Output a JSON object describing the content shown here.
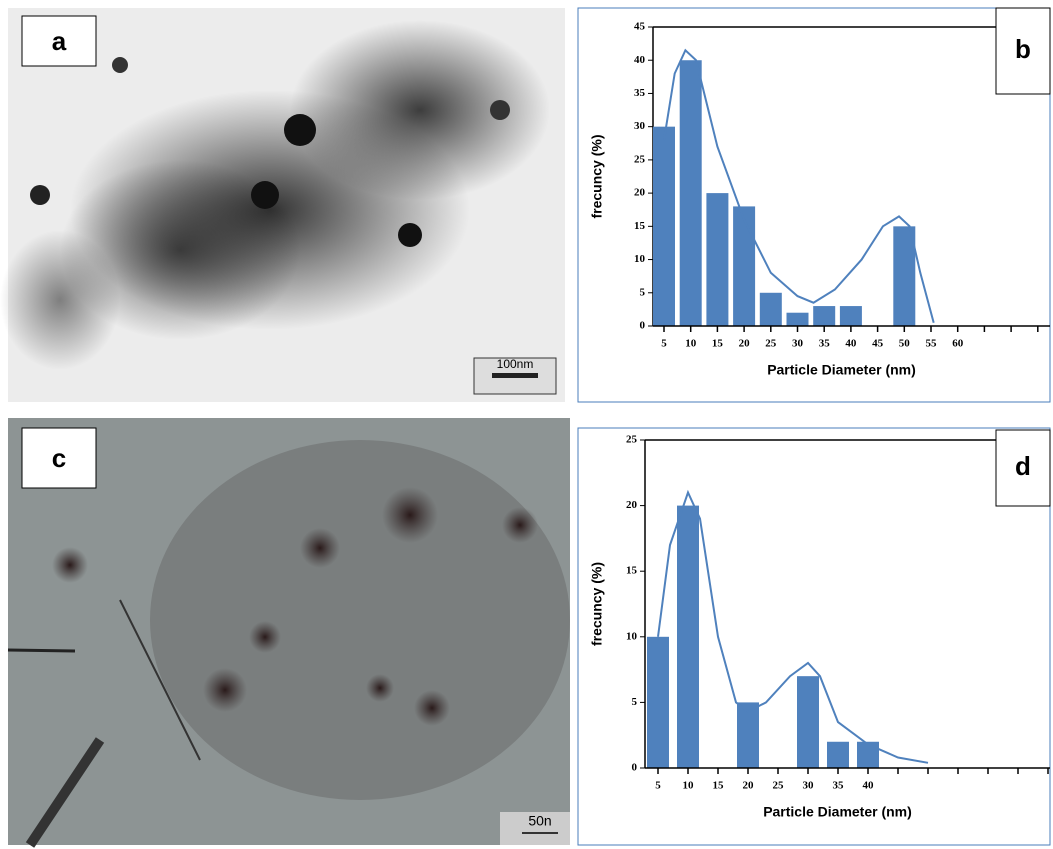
{
  "images": [
    {
      "label": "a",
      "scale_bar": "100nm"
    },
    {
      "label": "c",
      "scale_bar": "50n"
    }
  ],
  "chart_data": [
    {
      "type": "bar",
      "panel_label": "b",
      "x_label": "Particle Diameter (nm)",
      "y_label": "frecuncy (%)",
      "categories": [
        "5",
        "10",
        "15",
        "20",
        "25",
        "30",
        "35",
        "40",
        "45",
        "50",
        "55",
        "60",
        null,
        null,
        null
      ],
      "values": [
        30,
        40,
        20,
        18,
        5,
        2,
        3,
        3,
        null,
        15,
        null,
        null,
        null,
        null,
        null
      ],
      "color": "#4f81bd",
      "ylim": [
        0,
        45
      ],
      "yticks": [
        0,
        5,
        10,
        15,
        20,
        25,
        30,
        35,
        40,
        45
      ],
      "fit": {
        "color": "#4f81bd",
        "x": [
          5,
          7,
          9,
          11,
          15,
          20,
          25,
          30,
          33,
          37,
          42,
          46,
          49,
          51,
          53,
          55.5
        ],
        "y": [
          28,
          38,
          41.5,
          40,
          27,
          16,
          8,
          4.5,
          3.5,
          5.5,
          10,
          15,
          16.5,
          15,
          8,
          0.5
        ]
      }
    },
    {
      "type": "bar",
      "panel_label": "d",
      "x_label": "Particle Diameter (nm)",
      "y_label": "frecuncy (%)",
      "categories": [
        "5",
        "10",
        "15",
        "20",
        "25",
        "30",
        "35",
        "40",
        null,
        null,
        null,
        null,
        null,
        null
      ],
      "values": [
        10,
        20,
        null,
        5,
        null,
        7,
        2,
        2,
        null,
        null,
        null,
        null,
        null,
        null
      ],
      "color": "#4f81bd",
      "ylim": [
        0,
        25
      ],
      "yticks": [
        0,
        5,
        10,
        15,
        20,
        25
      ],
      "fit": {
        "color": "#4f81bd",
        "x": [
          5,
          7,
          10,
          12,
          15,
          18,
          20,
          23,
          27,
          30,
          32,
          35,
          40,
          45,
          50
        ],
        "y": [
          10,
          17,
          21,
          19,
          10,
          5,
          4.3,
          5,
          7,
          8,
          7,
          3.5,
          1.8,
          0.8,
          0.4
        ]
      }
    }
  ]
}
